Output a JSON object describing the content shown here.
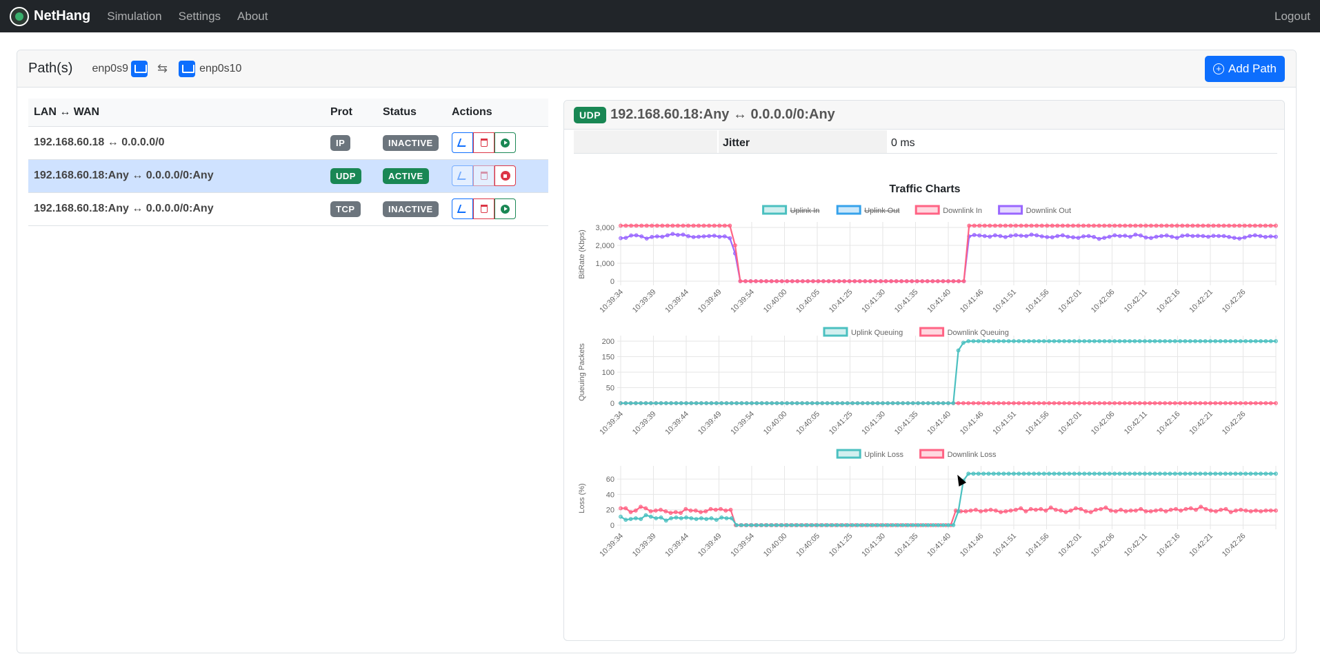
{
  "nav": {
    "brand": "NetHang",
    "links": [
      "Simulation",
      "Settings",
      "About"
    ],
    "logout": "Logout"
  },
  "paths_card": {
    "title": "Path(s)",
    "iface_left": "enp0s9",
    "iface_right": "enp0s10",
    "add_button": "Add Path"
  },
  "table": {
    "headers": [
      "LAN ↔ WAN",
      "Prot",
      "Status",
      "Actions"
    ],
    "rows": [
      {
        "route": "192.168.60.18 ↔ 0.0.0.0/0",
        "prot": "IP",
        "status": "INACTIVE"
      },
      {
        "route": "192.168.60.18:Any ↔ 0.0.0.0/0:Any",
        "prot": "UDP",
        "status": "ACTIVE"
      },
      {
        "route": "192.168.60.18:Any ↔ 0.0.0.0/0:Any",
        "prot": "TCP",
        "status": "INACTIVE"
      }
    ]
  },
  "detail": {
    "prot_badge": "UDP",
    "title": "192.168.60.18:Any ↔ 0.0.0.0/0:Any",
    "jitter_label": "Jitter",
    "jitter_value": "0 ms",
    "charts_title": "Traffic Charts"
  },
  "colors": {
    "teal": "#4bc0c0",
    "blue": "#36a2eb",
    "red": "#ff6384",
    "purple": "#9966ff",
    "navbar": "#212529",
    "primary": "#0d6efd",
    "success": "#198754",
    "secondary": "#6c757d"
  },
  "chart_data": [
    {
      "type": "line",
      "ylabel": "BitRate (Kbps)",
      "ylim": [
        0,
        3000
      ],
      "yticks": [
        0,
        1000,
        2000,
        3000
      ],
      "ytick_labels": [
        "0",
        "1,000",
        "2,000",
        "3,000"
      ],
      "x_tick_labels": [
        "10:39:34",
        "10:39:39",
        "10:39:44",
        "10:39:49",
        "10:39:54",
        "10:40:00",
        "10:40:05",
        "10:41:25",
        "10:41:30",
        "10:41:35",
        "10:41:40",
        "10:41:46",
        "10:41:51",
        "10:41:56",
        "10:42:01",
        "10:42:06",
        "10:42:11",
        "10:42:16",
        "10:42:21",
        "10:42:26"
      ],
      "legend_position": "top",
      "series": [
        {
          "name": "Uplink In",
          "hidden": true,
          "color": "#4bc0c0"
        },
        {
          "name": "Uplink Out",
          "hidden": true,
          "color": "#36a2eb"
        },
        {
          "name": "Downlink In",
          "hidden": false,
          "color": "#ff6384",
          "values": [
            3100,
            3100,
            3100,
            3100,
            3100,
            3100,
            3100,
            3100,
            3100,
            3100,
            3100,
            3100,
            3100,
            3100,
            3100,
            3100,
            3100,
            3100,
            3100,
            3100,
            3100,
            3100,
            2000,
            0,
            0,
            0,
            0,
            0,
            0,
            0,
            0,
            0,
            0,
            0,
            0,
            0,
            0,
            0,
            0,
            0,
            0,
            0,
            0,
            0,
            0,
            0,
            0,
            0,
            0,
            0,
            0,
            0,
            0,
            0,
            0,
            0,
            0,
            0,
            0,
            0,
            0,
            0,
            0,
            0,
            0,
            0,
            0,
            3100,
            3100,
            3100,
            3100,
            3100,
            3100,
            3100,
            3100,
            3100,
            3100,
            3100,
            3100,
            3100,
            3100,
            3100,
            3100,
            3100,
            3100,
            3100,
            3100,
            3100,
            3100,
            3100,
            3100,
            3100,
            3100,
            3100,
            3100,
            3100,
            3100,
            3100,
            3100,
            3100,
            3100,
            3100,
            3100,
            3100,
            3100,
            3100,
            3100,
            3100,
            3100,
            3100,
            3100,
            3100,
            3100,
            3100,
            3100,
            3100,
            3100,
            3100,
            3100,
            3100,
            3100,
            3100,
            3100,
            3100,
            3100,
            3100,
            3100
          ]
        },
        {
          "name": "Downlink Out",
          "hidden": false,
          "color": "#9966ff",
          "values": [
            2400,
            2420,
            2550,
            2560,
            2500,
            2380,
            2470,
            2500,
            2480,
            2560,
            2640,
            2580,
            2600,
            2510,
            2460,
            2480,
            2500,
            2520,
            2540,
            2480,
            2500,
            2400,
            1550,
            0,
            0,
            0,
            0,
            0,
            0,
            0,
            0,
            0,
            0,
            0,
            0,
            0,
            0,
            0,
            0,
            0,
            0,
            0,
            0,
            0,
            0,
            0,
            0,
            0,
            0,
            0,
            0,
            0,
            0,
            0,
            0,
            0,
            0,
            0,
            0,
            0,
            0,
            0,
            0,
            0,
            0,
            0,
            0,
            2500,
            2580,
            2550,
            2520,
            2490,
            2560,
            2520,
            2460,
            2530,
            2570,
            2540,
            2520,
            2600,
            2560,
            2500,
            2460,
            2450,
            2520,
            2560,
            2480,
            2450,
            2420,
            2500,
            2520,
            2470,
            2360,
            2420,
            2480,
            2560,
            2520,
            2540,
            2480,
            2600,
            2550,
            2440,
            2410,
            2480,
            2520,
            2550,
            2480,
            2420,
            2530,
            2560,
            2520,
            2530,
            2520,
            2480,
            2530,
            2520,
            2520,
            2470,
            2420,
            2380,
            2440,
            2520,
            2560,
            2520,
            2470,
            2500,
            2480
          ]
        }
      ]
    },
    {
      "type": "line",
      "ylabel": "Queuing Packets",
      "ylim": [
        0,
        200
      ],
      "yticks": [
        0,
        50,
        100,
        150,
        200
      ],
      "ytick_labels": [
        "0",
        "50",
        "100",
        "150",
        "200"
      ],
      "x_tick_labels": [
        "10:39:34",
        "10:39:39",
        "10:39:44",
        "10:39:49",
        "10:39:54",
        "10:40:00",
        "10:40:05",
        "10:41:25",
        "10:41:30",
        "10:41:35",
        "10:41:40",
        "10:41:46",
        "10:41:51",
        "10:41:56",
        "10:42:01",
        "10:42:06",
        "10:42:11",
        "10:42:16",
        "10:42:21",
        "10:42:26"
      ],
      "legend_position": "top",
      "series": [
        {
          "name": "Uplink Queuing",
          "hidden": false,
          "color": "#4bc0c0",
          "values": [
            0,
            0,
            0,
            0,
            0,
            0,
            0,
            0,
            0,
            0,
            0,
            0,
            0,
            0,
            0,
            0,
            0,
            0,
            0,
            0,
            0,
            0,
            0,
            0,
            0,
            0,
            0,
            0,
            0,
            0,
            0,
            0,
            0,
            0,
            0,
            0,
            0,
            0,
            0,
            0,
            0,
            0,
            0,
            0,
            0,
            0,
            0,
            0,
            0,
            0,
            0,
            0,
            0,
            0,
            0,
            0,
            0,
            0,
            0,
            0,
            0,
            0,
            0,
            0,
            0,
            0,
            0,
            170,
            195,
            200,
            200,
            200,
            200,
            200,
            200,
            200,
            200,
            200,
            200,
            200,
            200,
            200,
            200,
            200,
            200,
            200,
            200,
            200,
            200,
            200,
            200,
            200,
            200,
            200,
            200,
            200,
            200,
            200,
            200,
            200,
            200,
            200,
            200,
            200,
            200,
            200,
            200,
            200,
            200,
            200,
            200,
            200,
            200,
            200,
            200,
            200,
            200,
            200,
            200,
            200,
            200,
            200,
            200,
            200,
            200,
            200,
            200,
            200,
            200,
            200,
            200
          ]
        },
        {
          "name": "Downlink Queuing",
          "hidden": false,
          "color": "#ff6384",
          "values": [
            0,
            0,
            0,
            0,
            0,
            0,
            0,
            0,
            0,
            0,
            0,
            0,
            0,
            0,
            0,
            0,
            0,
            0,
            0,
            0,
            0,
            0,
            0,
            0,
            0,
            0,
            0,
            0,
            0,
            0,
            0,
            0,
            0,
            0,
            0,
            0,
            0,
            0,
            0,
            0,
            0,
            0,
            0,
            0,
            0,
            0,
            0,
            0,
            0,
            0,
            0,
            0,
            0,
            0,
            0,
            0,
            0,
            0,
            0,
            0,
            0,
            0,
            0,
            0,
            0,
            0,
            0,
            0,
            0,
            0,
            0,
            0,
            0,
            0,
            0,
            0,
            0,
            0,
            0,
            0,
            0,
            0,
            0,
            0,
            0,
            0,
            0,
            0,
            0,
            0,
            0,
            0,
            0,
            0,
            0,
            0,
            0,
            0,
            0,
            0,
            0,
            0,
            0,
            0,
            0,
            0,
            0,
            0,
            0,
            0,
            0,
            0,
            0,
            0,
            0,
            0,
            0,
            0,
            0,
            0,
            0,
            0,
            0,
            0,
            0,
            0,
            0,
            0,
            0,
            0,
            0
          ]
        }
      ]
    },
    {
      "type": "line",
      "ylabel": "Loss (%)",
      "ylim": [
        0,
        70
      ],
      "yticks": [
        0,
        20,
        40,
        60
      ],
      "ytick_labels": [
        "0",
        "20",
        "40",
        "60"
      ],
      "x_tick_labels": [
        "10:39:34",
        "10:39:39",
        "10:39:44",
        "10:39:49",
        "10:39:54",
        "10:40:00",
        "10:40:05",
        "10:41:25",
        "10:41:30",
        "10:41:35",
        "10:41:40",
        "10:41:46",
        "10:41:51",
        "10:41:56",
        "10:42:01",
        "10:42:06",
        "10:42:11",
        "10:42:16",
        "10:42:21",
        "10:42:26"
      ],
      "legend_position": "top",
      "series": [
        {
          "name": "Uplink Loss",
          "hidden": false,
          "color": "#4bc0c0",
          "values": [
            11,
            7,
            8,
            9,
            8,
            13,
            11,
            9,
            10,
            6,
            9,
            10,
            9,
            10,
            9,
            8,
            9,
            8,
            9,
            7,
            10,
            9,
            9,
            0,
            0,
            0,
            0,
            0,
            0,
            0,
            0,
            0,
            0,
            0,
            0,
            0,
            0,
            0,
            0,
            0,
            0,
            0,
            0,
            0,
            0,
            0,
            0,
            0,
            0,
            0,
            0,
            0,
            0,
            0,
            0,
            0,
            0,
            0,
            0,
            0,
            0,
            0,
            0,
            0,
            0,
            0,
            0,
            18,
            58,
            67,
            67,
            67,
            67,
            67,
            67,
            67,
            67,
            67,
            67,
            67,
            67,
            67,
            67,
            67,
            67,
            67,
            67,
            67,
            67,
            67,
            67,
            67,
            67,
            67,
            67,
            67,
            67,
            67,
            67,
            67,
            67,
            67,
            67,
            67,
            67,
            67,
            67,
            67,
            67,
            67,
            67,
            67,
            67,
            67,
            67,
            67,
            67,
            67,
            67,
            67,
            67,
            67,
            67,
            67,
            67,
            67,
            67,
            67,
            67,
            67,
            67
          ]
        },
        {
          "name": "Downlink Loss",
          "hidden": false,
          "color": "#ff6384",
          "values": [
            22,
            22,
            17,
            19,
            24,
            22,
            18,
            19,
            20,
            18,
            16,
            17,
            16,
            21,
            19,
            19,
            17,
            18,
            21,
            20,
            21,
            19,
            20,
            0,
            0,
            0,
            0,
            0,
            0,
            0,
            0,
            0,
            0,
            0,
            0,
            0,
            0,
            0,
            0,
            0,
            0,
            0,
            0,
            0,
            0,
            0,
            0,
            0,
            0,
            0,
            0,
            0,
            0,
            0,
            0,
            0,
            0,
            0,
            0,
            0,
            0,
            0,
            0,
            0,
            0,
            0,
            0,
            19,
            18,
            18,
            19,
            20,
            18,
            19,
            20,
            19,
            17,
            18,
            19,
            20,
            22,
            18,
            21,
            20,
            21,
            19,
            23,
            20,
            19,
            17,
            19,
            22,
            21,
            18,
            17,
            20,
            21,
            23,
            19,
            18,
            20,
            18,
            19,
            19,
            21,
            18,
            18,
            19,
            20,
            18,
            20,
            21,
            19,
            21,
            22,
            20,
            24,
            21,
            19,
            18,
            20,
            21,
            17,
            19,
            20,
            19,
            18,
            19,
            18,
            19,
            19,
            19
          ]
        }
      ]
    }
  ]
}
